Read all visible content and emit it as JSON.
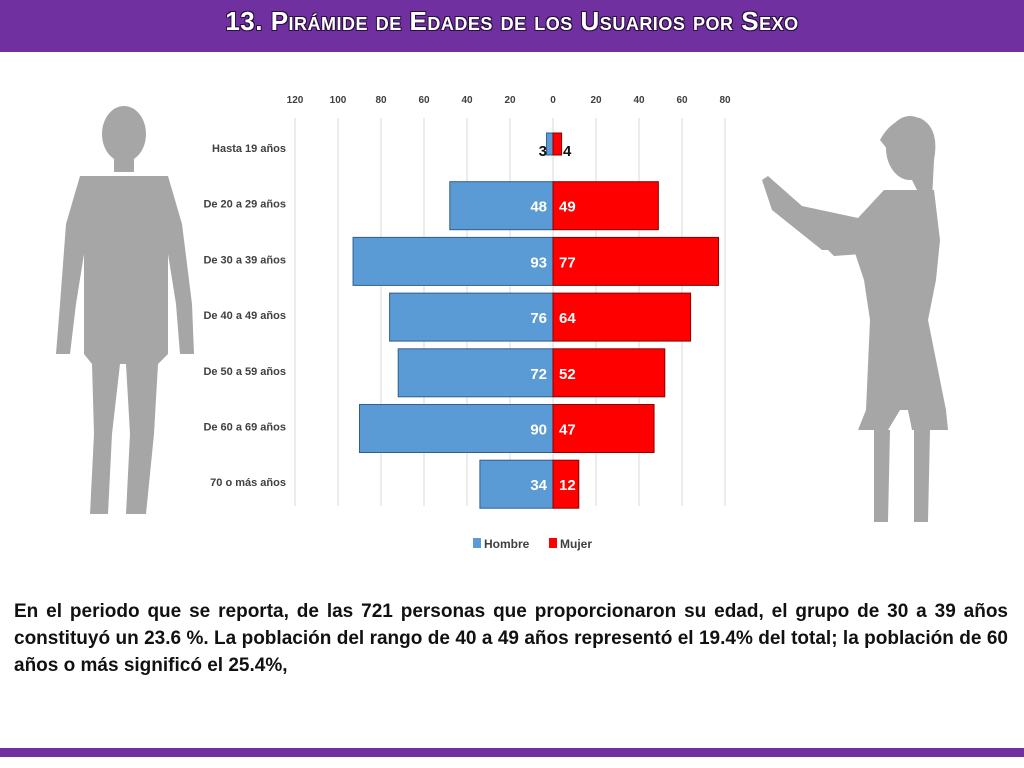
{
  "title": "13. Pirámide de Edades de los Usuarios por Sexo",
  "description": "En el periodo que se reporta, de las 721 personas que proporcionaron su edad, el grupo de 30 a 39 años constituyó un 23.6 %. La población del rango de 40 a 49 años representó el 19.4% del total; la población de 60 años o más significó el 25.4%,",
  "colors": {
    "accent": "#7030a0",
    "hombre": "#5b9bd5",
    "mujer": "#ff0000",
    "silhouette": "#a6a6a6"
  },
  "chart_data": {
    "type": "bar",
    "orientation": "horizontal-pyramid",
    "categories": [
      "Hasta 19 años",
      "De 20 a 29 años",
      "De 30 a 39 años",
      "De 40 a 49 años",
      "De 50 a 59 años",
      "De 60 a 69 años",
      "70 o más años"
    ],
    "series": [
      {
        "name": "Hombre",
        "values": [
          3,
          48,
          93,
          76,
          72,
          90,
          34
        ],
        "color": "#5b9bd5"
      },
      {
        "name": "Mujer",
        "values": [
          4,
          49,
          77,
          64,
          52,
          47,
          12
        ],
        "color": "#ff0000"
      }
    ],
    "x_ticks_left": [
      "120",
      "100",
      "80",
      "60",
      "40",
      "20",
      "0"
    ],
    "x_ticks_right": [
      "20",
      "40",
      "60",
      "80"
    ],
    "xlim": [
      0,
      120
    ],
    "grid": true,
    "legend_position": "bottom"
  }
}
